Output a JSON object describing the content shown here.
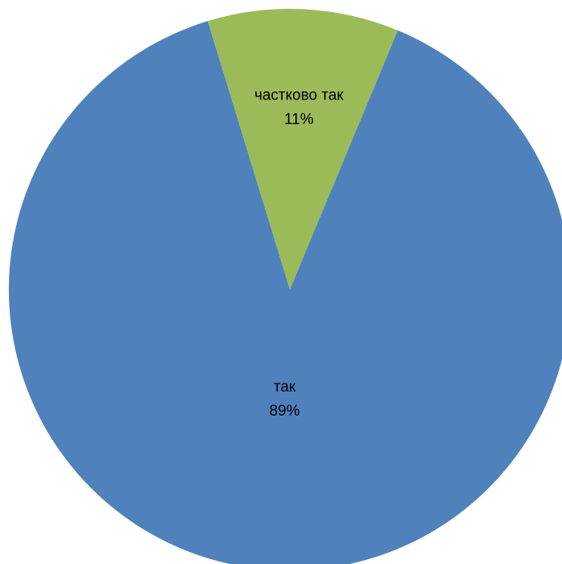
{
  "chart_data": {
    "type": "pie",
    "title": "",
    "start_angle_deg": 343,
    "direction": "clockwise",
    "slices": [
      {
        "label": "частково так",
        "value": 11,
        "percent_label": "11%",
        "color": "#9BBB59"
      },
      {
        "label": "так",
        "value": 89,
        "percent_label": "89%",
        "color": "#4F81BD"
      }
    ],
    "legend": "none",
    "data_labels": "inside"
  }
}
